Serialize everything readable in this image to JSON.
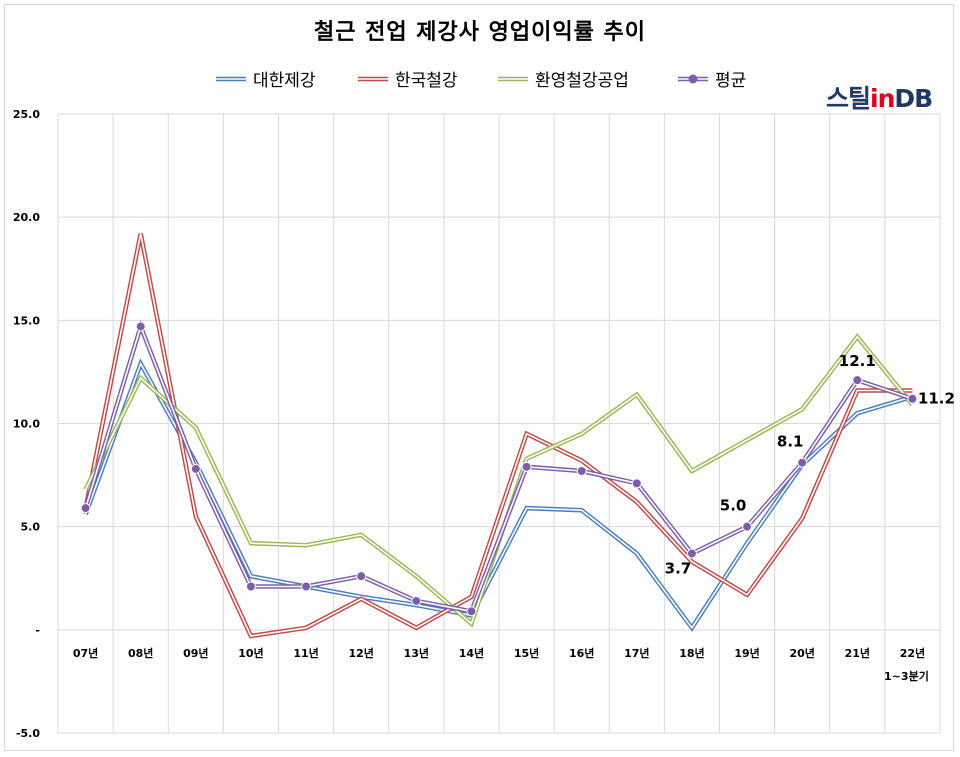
{
  "chart_data": {
    "type": "line",
    "title": "철근 전업 제강사 영업이익률 추이",
    "categories": [
      "07년",
      "08년",
      "09년",
      "10년",
      "11년",
      "12년",
      "13년",
      "14년",
      "15년",
      "16년",
      "17년",
      "18년",
      "19년",
      "20년",
      "21년",
      "22년"
    ],
    "x_sublabel_last": "1~3분기",
    "ylim": [
      -5,
      25
    ],
    "yticks": [
      25,
      20,
      15,
      10,
      5,
      0,
      -5
    ],
    "ytick_labels": [
      "25.0",
      "20.0",
      "15.0",
      "10.0",
      "5.0",
      "-",
      "-5.0"
    ],
    "grid": true,
    "legend_position": "top",
    "series": [
      {
        "name": "대한제강",
        "color": "#4a7ebb",
        "values": [
          5.6,
          12.9,
          8.1,
          2.6,
          2.1,
          1.6,
          1.2,
          0.7,
          5.9,
          5.8,
          3.7,
          0.1,
          4.2,
          8.0,
          10.5,
          11.3
        ]
      },
      {
        "name": "한국철강",
        "color": "#be4b48",
        "values": [
          5.9,
          19.2,
          5.5,
          -0.3,
          0.1,
          1.5,
          0.1,
          1.6,
          9.5,
          8.2,
          6.2,
          3.3,
          1.7,
          5.4,
          11.6,
          11.6
        ]
      },
      {
        "name": "환영철강공업",
        "color": "#98b954",
        "values": [
          6.8,
          12.2,
          9.8,
          4.2,
          4.1,
          4.6,
          2.6,
          0.3,
          8.3,
          9.5,
          11.4,
          7.7,
          9.2,
          10.7,
          14.2,
          10.9
        ]
      },
      {
        "name": "평균",
        "color": "#7e5ea8",
        "values": [
          5.9,
          14.7,
          7.8,
          2.1,
          2.1,
          2.6,
          1.4,
          0.9,
          7.9,
          7.7,
          7.1,
          3.7,
          5.0,
          8.1,
          12.1,
          11.2
        ]
      }
    ],
    "annotations": [
      {
        "series": "평균",
        "category": "18년",
        "text": "3.7"
      },
      {
        "series": "평균",
        "category": "19년",
        "text": "5.0"
      },
      {
        "series": "평균",
        "category": "20년",
        "text": "8.1"
      },
      {
        "series": "평균",
        "category": "21년",
        "text": "12.1"
      },
      {
        "series": "평균",
        "category": "22년",
        "text": "11.2"
      }
    ]
  },
  "logo": {
    "part1": "스틸",
    "part2": "in",
    "part3": "DB"
  }
}
